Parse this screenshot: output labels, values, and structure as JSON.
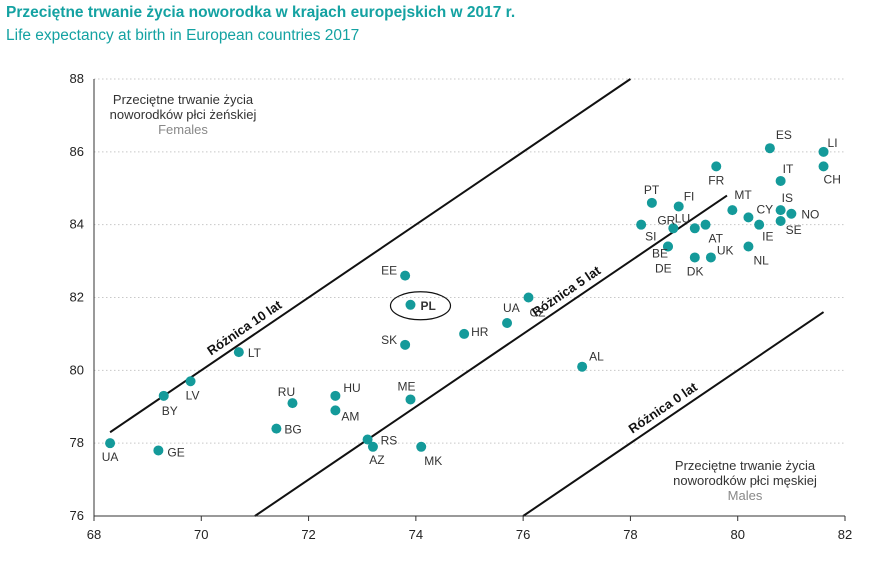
{
  "title_pl": "Przeciętne trwanie życia noworodka w krajach europejskich w 2017 r.",
  "title_en": "Life expectancy at birth in European countries 2017",
  "colors": {
    "point": "#149a9a",
    "title": "#14a2a2",
    "grid": "#c8c8c8",
    "line": "#111111"
  },
  "chart_data": {
    "type": "scatter",
    "title": "Przeciętne trwanie życia noworodka w krajach europejskich w 2017 r.",
    "subtitle": "Life expectancy at birth in European countries 2017",
    "xlim": [
      68,
      82
    ],
    "ylim": [
      76,
      88
    ],
    "xticks": [
      "68",
      "70",
      "72",
      "74",
      "76",
      "78",
      "80",
      "82"
    ],
    "yticks": [
      "76",
      "78",
      "80",
      "82",
      "84",
      "86",
      "88"
    ],
    "xlabel": "Przeciętne trwanie życia noworodków płci męskiej",
    "xlabel_en": "Males",
    "ylabel": "Przeciętne trwanie życia noworodków płci żeńskiej",
    "ylabel_en": "Females",
    "grid": "horizontal",
    "reference_lines": [
      {
        "label": "Różnica 10 lat",
        "difference": 10
      },
      {
        "label": "Różnica 5 lat",
        "difference": 5
      },
      {
        "label": "Różnica 0 lat",
        "difference": 0
      }
    ],
    "points": [
      {
        "label": "UA",
        "x": 68.3,
        "y": 78.0
      },
      {
        "label": "GE",
        "x": 69.2,
        "y": 77.8
      },
      {
        "label": "BY",
        "x": 69.3,
        "y": 79.3
      },
      {
        "label": "LV",
        "x": 69.8,
        "y": 79.7
      },
      {
        "label": "LT",
        "x": 70.7,
        "y": 80.5
      },
      {
        "label": "RU",
        "x": 71.7,
        "y": 79.1
      },
      {
        "label": "BG",
        "x": 71.4,
        "y": 78.4
      },
      {
        "label": "HU",
        "x": 72.5,
        "y": 79.3
      },
      {
        "label": "AM",
        "x": 72.5,
        "y": 78.9
      },
      {
        "label": "RS",
        "x": 73.1,
        "y": 78.1
      },
      {
        "label": "AZ",
        "x": 73.2,
        "y": 77.9
      },
      {
        "label": "MK",
        "x": 74.1,
        "y": 77.9
      },
      {
        "label": "ME",
        "x": 73.9,
        "y": 79.2
      },
      {
        "label": "EE",
        "x": 73.8,
        "y": 82.6
      },
      {
        "label": "PL",
        "x": 73.9,
        "y": 81.8
      },
      {
        "label": "SK",
        "x": 73.8,
        "y": 80.7
      },
      {
        "label": "HR",
        "x": 74.9,
        "y": 81.0
      },
      {
        "label": "UA",
        "x": 75.7,
        "y": 81.3
      },
      {
        "label": "CZ",
        "x": 76.1,
        "y": 82.0
      },
      {
        "label": "AL",
        "x": 77.1,
        "y": 80.1
      },
      {
        "label": "PT",
        "x": 78.4,
        "y": 84.6
      },
      {
        "label": "FI",
        "x": 78.9,
        "y": 84.5
      },
      {
        "label": "GR",
        "x": 78.8,
        "y": 83.9
      },
      {
        "label": "SI",
        "x": 78.2,
        "y": 84.0
      },
      {
        "label": "BE",
        "x": 78.7,
        "y": 83.4
      },
      {
        "label": "DE",
        "x": 78.7,
        "y": 83.4
      },
      {
        "label": "LU",
        "x": 79.2,
        "y": 83.9
      },
      {
        "label": "AT",
        "x": 79.4,
        "y": 84.0
      },
      {
        "label": "FR",
        "x": 79.6,
        "y": 85.6
      },
      {
        "label": "DK",
        "x": 79.2,
        "y": 83.1
      },
      {
        "label": "UK",
        "x": 79.5,
        "y": 83.1
      },
      {
        "label": "MT",
        "x": 79.9,
        "y": 84.4
      },
      {
        "label": "CY",
        "x": 80.2,
        "y": 84.2
      },
      {
        "label": "NL",
        "x": 80.2,
        "y": 83.4
      },
      {
        "label": "IE",
        "x": 80.4,
        "y": 84.0
      },
      {
        "label": "ES",
        "x": 80.6,
        "y": 86.1
      },
      {
        "label": "IT",
        "x": 80.8,
        "y": 85.2
      },
      {
        "label": "IS",
        "x": 80.8,
        "y": 84.4
      },
      {
        "label": "SE",
        "x": 80.8,
        "y": 84.1
      },
      {
        "label": "NO",
        "x": 81.0,
        "y": 84.3
      },
      {
        "label": "LI",
        "x": 81.6,
        "y": 86.0
      },
      {
        "label": "CH",
        "x": 81.6,
        "y": 85.6
      }
    ]
  }
}
